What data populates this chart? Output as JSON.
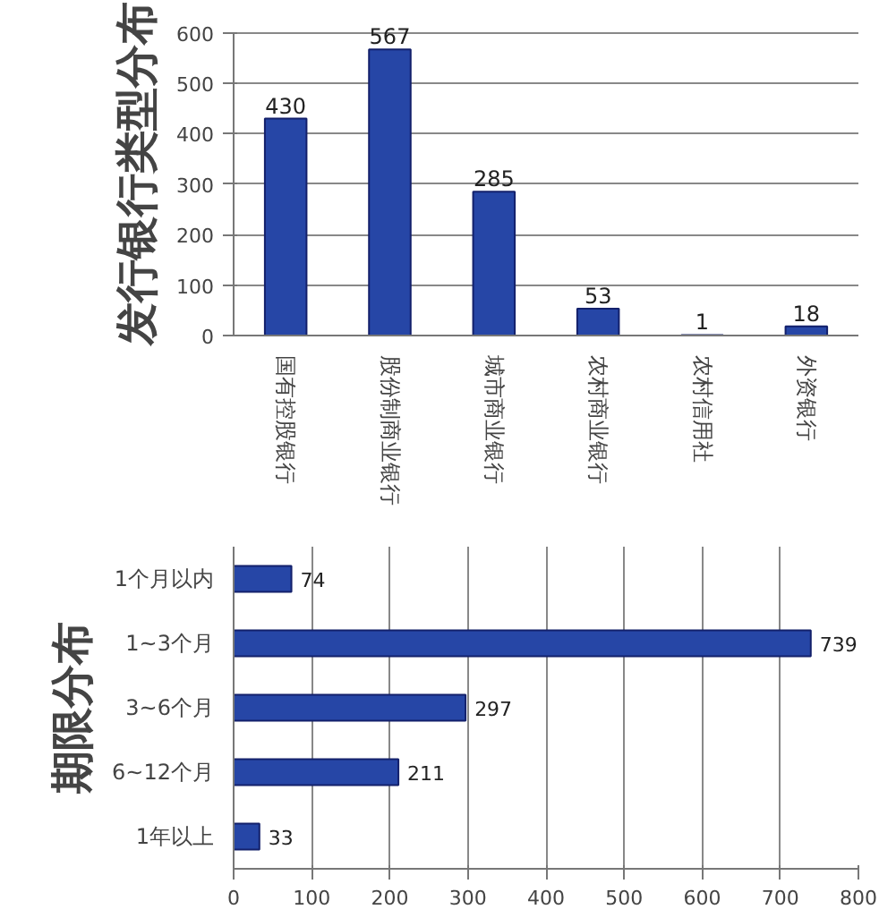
{
  "chart_data": [
    {
      "type": "bar",
      "title": "发行银行类型分布",
      "categories": [
        "国有控股银行",
        "股份制商业银行",
        "城市商业银行",
        "农村商业银行",
        "农村信用社",
        "外资银行"
      ],
      "values": [
        430,
        567,
        285,
        53,
        1,
        18
      ],
      "color": "#2646a6",
      "ylim": [
        0,
        600
      ],
      "yticks": [
        0,
        100,
        200,
        300,
        400,
        500,
        600
      ],
      "grid": "y",
      "legend": false,
      "data_labels": true
    },
    {
      "type": "bar",
      "title": "期限分布",
      "orientation": "horizontal",
      "categories": [
        "1个月以内",
        "1~3个月",
        "3~6个月",
        "6~12个月",
        "1年以上"
      ],
      "values": [
        74,
        739,
        297,
        211,
        33
      ],
      "color": "#2646a6",
      "xlim": [
        0,
        800
      ],
      "xticks": [
        0,
        100,
        200,
        300,
        400,
        500,
        600,
        700,
        800
      ],
      "grid": "x",
      "legend": false,
      "data_labels": true
    }
  ]
}
